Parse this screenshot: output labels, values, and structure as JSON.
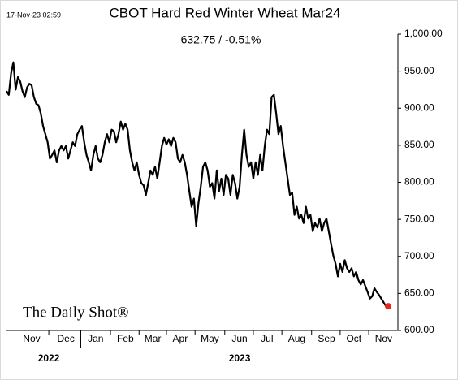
{
  "chart_data": {
    "type": "line",
    "title": "CBOT Hard Red Winter Wheat Mar24",
    "subtitle": "632.75  /  -0.51%",
    "timestamp": "17-Nov-23 02:59",
    "source": "The Daily Shot®",
    "color": "#000000",
    "last_point_color": "#e8251f",
    "values": [
      923,
      918,
      947,
      962,
      925,
      942,
      936,
      923,
      915,
      928,
      933,
      931,
      915,
      906,
      904,
      893,
      876,
      865,
      854,
      832,
      837,
      843,
      827,
      843,
      849,
      843,
      849,
      832,
      843,
      854,
      849,
      865,
      871,
      876,
      854,
      837,
      827,
      816,
      837,
      849,
      832,
      827,
      837,
      854,
      865,
      854,
      871,
      869,
      854,
      865,
      882,
      871,
      879,
      871,
      843,
      827,
      816,
      827,
      810,
      799,
      796,
      783,
      799,
      816,
      810,
      821,
      805,
      827,
      849,
      860,
      851,
      858,
      849,
      860,
      854,
      832,
      827,
      837,
      827,
      810,
      788,
      767,
      778,
      741,
      772,
      794,
      821,
      827,
      816,
      794,
      799,
      778,
      816,
      788,
      805,
      783,
      810,
      805,
      783,
      810,
      799,
      778,
      794,
      837,
      871,
      837,
      821,
      827,
      805,
      827,
      810,
      837,
      816,
      849,
      871,
      865,
      915,
      918,
      893,
      865,
      876,
      849,
      827,
      805,
      783,
      786,
      756,
      767,
      751,
      756,
      745,
      767,
      751,
      756,
      734,
      745,
      739,
      751,
      734,
      745,
      751,
      734,
      717,
      701,
      690,
      673,
      690,
      679,
      695,
      684,
      679,
      684,
      673,
      679,
      668,
      662,
      668,
      660,
      652,
      643,
      646,
      657,
      652,
      648,
      643,
      638,
      633,
      632.75
    ],
    "xlim": [
      0,
      167
    ],
    "xticks": [
      {
        "value": 11,
        "label": "Nov"
      },
      {
        "value": 26,
        "label": "Dec"
      },
      {
        "value": 39,
        "label": "Jan"
      },
      {
        "value": 52,
        "label": "Feb"
      },
      {
        "value": 64,
        "label": "Mar"
      },
      {
        "value": 76,
        "label": "Apr"
      },
      {
        "value": 89,
        "label": "May"
      },
      {
        "value": 102,
        "label": "Jun"
      },
      {
        "value": 114,
        "label": "Jul"
      },
      {
        "value": 127,
        "label": "Aug"
      },
      {
        "value": 140,
        "label": "Sep"
      },
      {
        "value": 152,
        "label": "Oct"
      },
      {
        "value": 165,
        "label": "Nov"
      }
    ],
    "years": [
      {
        "label": "2022",
        "first_tick": 0,
        "last_tick": 1
      },
      {
        "label": "2023",
        "first_tick": 2,
        "last_tick": 12
      }
    ],
    "ylim": [
      600,
      1000
    ],
    "yticks": [
      {
        "value": 600,
        "label": "600.00"
      },
      {
        "value": 650,
        "label": "650.00"
      },
      {
        "value": 700,
        "label": "700.00"
      },
      {
        "value": 750,
        "label": "750.00"
      },
      {
        "value": 800,
        "label": "800.00"
      },
      {
        "value": 850,
        "label": "850.00"
      },
      {
        "value": 900,
        "label": "900.00"
      },
      {
        "value": 950,
        "label": "950.00"
      },
      {
        "value": 1000,
        "label": "1,000.00"
      }
    ],
    "grid": false
  }
}
